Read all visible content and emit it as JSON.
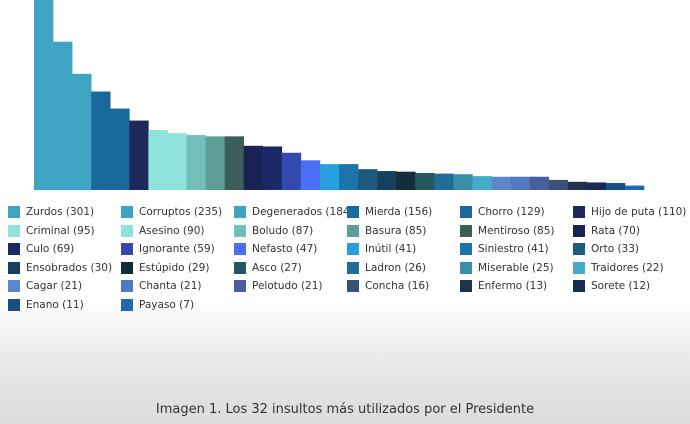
{
  "chart_data": {
    "type": "bar",
    "categories": [
      "Zurdos",
      "Corruptos",
      "Degenerados",
      "Mierda",
      "Chorro",
      "Hijo de puta",
      "Criminal",
      "Asesino",
      "Boludo",
      "Basura",
      "Mentiroso",
      "Rata",
      "Culo",
      "Ignorante",
      "Nefasto",
      "Inútil",
      "Siniestro",
      "Orto",
      "Ensobrados",
      "Estúpido",
      "Asco",
      "Ladron",
      "Miserable",
      "Traidores",
      "Cagar",
      "Chanta",
      "Pelotudo",
      "Concha",
      "Enfermo",
      "Sorete",
      "Enano",
      "Payaso"
    ],
    "values": [
      301,
      235,
      184,
      156,
      129,
      110,
      95,
      90,
      87,
      85,
      85,
      70,
      69,
      59,
      47,
      41,
      41,
      33,
      30,
      29,
      27,
      26,
      25,
      22,
      21,
      21,
      21,
      16,
      13,
      12,
      11,
      7
    ],
    "legend_labels": [
      "Zurdos (301)",
      "Corruptos  (235)",
      "Degenerados (184)",
      "Mierda (156)",
      "Chorro (129)",
      "Hijo de puta (110)",
      "Criminal (95)",
      "Asesino (90)",
      "Boludo (87)",
      "Basura (85)",
      "Mentiroso (85)",
      "Rata (70)",
      "Culo (69)",
      "Ignorante (59)",
      "Nefasto (47)",
      "Inútil (41)",
      "Siniestro (41)",
      "Orto (33)",
      "Ensobrados (30)",
      "Estúpido  (29)",
      "Asco (27)",
      "Ladron (26)",
      "Miserable (25)",
      "Traidores (22)",
      "Cagar (21)",
      "Chanta (21)",
      "Pelotudo (21)",
      "Concha (16)",
      "Enfermo (13)",
      "Sorete (12)",
      "Enano (11)",
      "Payaso (7)"
    ],
    "colors": [
      "#3fa3c4",
      "#3fa3c4",
      "#3fa3c4",
      "#19699c",
      "#19699c",
      "#1e2a5c",
      "#8ee3dc",
      "#8ee3dc",
      "#72bfb9",
      "#5d9e98",
      "#3c5e5a",
      "#182554",
      "#1a2a66",
      "#3548b0",
      "#4a6ef4",
      "#2a9fe0",
      "#1c74a8",
      "#1c5a7e",
      "#15405e",
      "#132d3c",
      "#23585f",
      "#1f6d98",
      "#3a8ea6",
      "#45abc6",
      "#5c87cc",
      "#4f79c0",
      "#475f9e",
      "#3b5278",
      "#22324a",
      "#162c50",
      "#154f86",
      "#1d6ab0"
    ],
    "title": "",
    "xlabel": "",
    "ylabel": "",
    "ylim": [
      0,
      301
    ],
    "grid": false,
    "legend_position": "bottom"
  },
  "caption": "Imagen 1. Los 32 insultos más utilizados por el Presidente"
}
